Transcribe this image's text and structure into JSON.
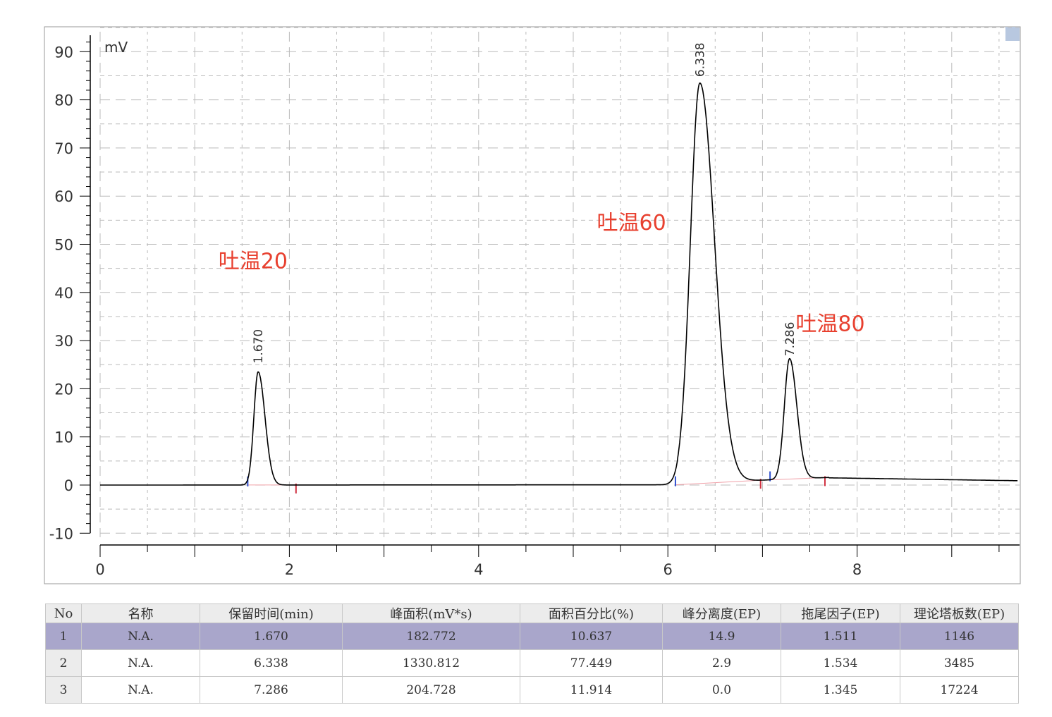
{
  "chart_data": {
    "type": "line",
    "ylabel": "mV",
    "xlim": [
      0,
      9.7
    ],
    "ylim": [
      -10,
      95
    ],
    "xticks": [
      "0",
      "2",
      "4",
      "6",
      "8"
    ],
    "yticks": [
      "90",
      "80",
      "70",
      "60",
      "50",
      "40",
      "30",
      "20",
      "10",
      "0",
      "-10"
    ],
    "grid": true,
    "line_color": "#000000",
    "peaks": [
      {
        "rt": 1.67,
        "label": "1.670",
        "height": 23.5,
        "start": 1.56,
        "end": 2.07
      },
      {
        "rt": 6.338,
        "label": "6.338",
        "height": 83,
        "start": 6.08,
        "end": 6.98
      },
      {
        "rt": 7.286,
        "label": "7.286",
        "height": 25,
        "start": 7.08,
        "end": 7.66
      }
    ],
    "annotations": [
      {
        "text": "吐温20",
        "x": 1.25,
        "y": 45
      },
      {
        "text": "吐温60",
        "x": 5.25,
        "y": 53
      },
      {
        "text": "吐温80",
        "x": 7.35,
        "y": 32
      }
    ],
    "annotation_color": "#e8402f"
  },
  "table": {
    "headers": [
      "No",
      "名称",
      "保留时间(min)",
      "峰面积(mV*s)",
      "面积百分比(%)",
      "峰分离度(EP)",
      "拖尾因子(EP)",
      "理论塔板数(EP)"
    ],
    "rows": [
      [
        "1",
        "N.A.",
        "1.670",
        "182.772",
        "10.637",
        "14.9",
        "1.511",
        "1146"
      ],
      [
        "2",
        "N.A.",
        "6.338",
        "1330.812",
        "77.449",
        "2.9",
        "1.534",
        "3485"
      ],
      [
        "3",
        "N.A.",
        "7.286",
        "204.728",
        "11.914",
        "0.0",
        "1.345",
        "17224"
      ]
    ],
    "selected_row": 0
  }
}
